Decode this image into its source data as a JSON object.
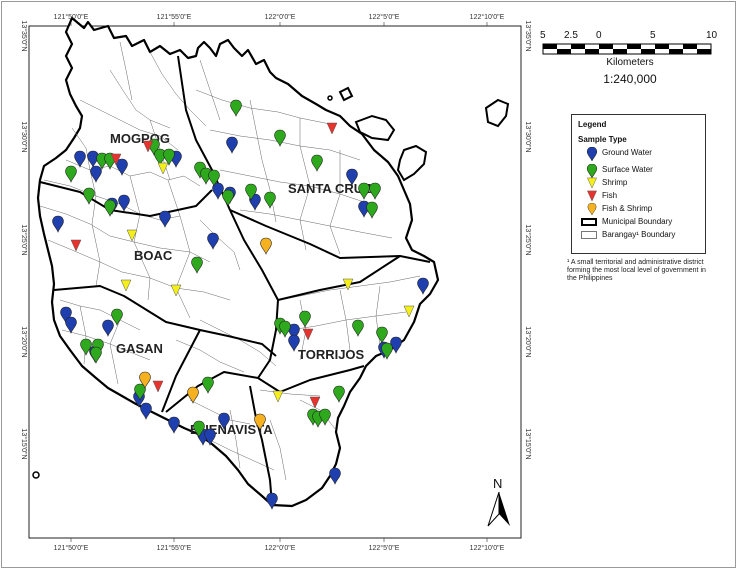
{
  "map": {
    "municipalities": [
      "MOGPOG",
      "SANTA CRUZ",
      "BOAC",
      "GASAN",
      "TORRIJOS",
      "BUENAVISTA"
    ],
    "top_ticks": [
      "121°50'0\"E",
      "121°55'0\"E",
      "122°0'0\"E",
      "122°5'0\"E",
      "122°10'0\"E"
    ],
    "bottom_ticks": [
      "121°50'0\"E",
      "121°55'0\"E",
      "122°0'0\"E",
      "122°5'0\"E",
      "122°10'0\"E"
    ],
    "left_ticks": [
      "13°35'0\"N",
      "13°30'0\"N",
      "13°25'0\"N",
      "13°20'0\"N",
      "13°15'0\"N"
    ],
    "right_ticks": [
      "13°35'0\"N",
      "13°30'0\"N",
      "13°25'0\"N",
      "13°20'0\"N",
      "13°15'0\"N"
    ]
  },
  "scale": {
    "labels": [
      "5",
      "2.5",
      "0",
      "5",
      "10"
    ],
    "units": "Kilometers",
    "ratio": "1:240,000"
  },
  "legend": {
    "title": "Legend",
    "subtitle": "Sample Type",
    "items": [
      {
        "label": "Ground Water",
        "color": "#1f3fae",
        "shape": "pin"
      },
      {
        "label": "Surface Water",
        "color": "#2ea81c",
        "shape": "pin"
      },
      {
        "label": "Shrimp",
        "color": "#f4ef1a",
        "shape": "tri"
      },
      {
        "label": "Fish",
        "color": "#e8322e",
        "shape": "tri"
      },
      {
        "label": "Fish & Shrimp",
        "color": "#f5b120",
        "shape": "pin"
      }
    ],
    "boundaries": [
      {
        "label": "Municipal Boundary",
        "style": "thick"
      },
      {
        "label": "Barangay¹ Boundary",
        "style": "thin"
      }
    ]
  },
  "footnote": "¹ A small territorial and administrative district forming the most local level of government in the Philippines",
  "north_arrow": "N"
}
